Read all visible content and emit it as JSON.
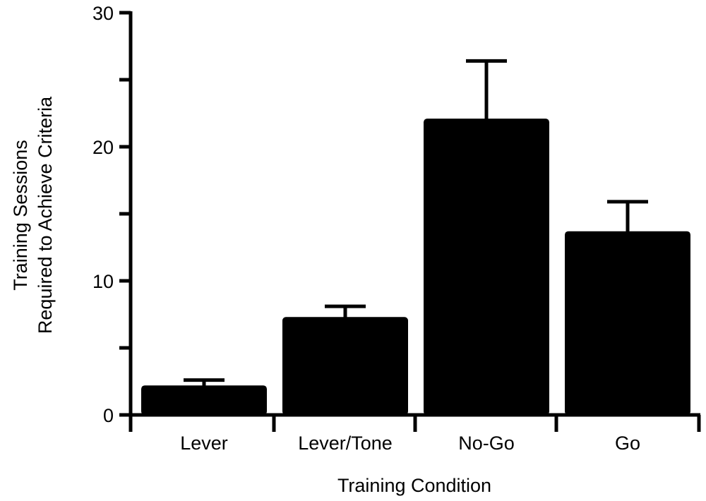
{
  "chart_data": {
    "type": "bar",
    "categories": [
      "Lever",
      "Lever/Tone",
      "No-Go",
      "Go"
    ],
    "values": [
      2.2,
      7.3,
      22.1,
      13.7
    ],
    "error_upper": [
      2.6,
      8.1,
      26.4,
      15.9
    ],
    "error_bars": "upper",
    "title": "",
    "xlabel": "Training Condition",
    "ylabel_lines": [
      "Training Sessions",
      "Required to Achieve Criteria"
    ],
    "ylim": [
      0,
      30
    ],
    "y_ticks": [
      0,
      10,
      20,
      30
    ],
    "y_minor_ticks": [
      5,
      15,
      25
    ],
    "grid": false,
    "legend": "none",
    "bar_color": "#000000"
  }
}
